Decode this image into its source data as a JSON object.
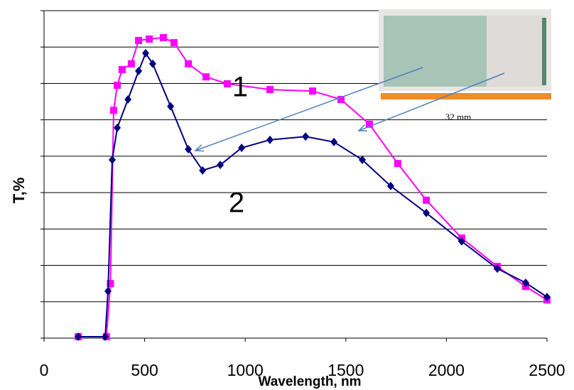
{
  "chart_data": {
    "type": "line",
    "xlabel": "Wavelength, nm",
    "ylabel": "T,%",
    "xlim": [
      0,
      2500
    ],
    "xticks": [
      0,
      500,
      1000,
      1500,
      2000,
      2500
    ],
    "ylim": [
      0,
      90
    ],
    "yticks": [
      0,
      10,
      20,
      30,
      40,
      50,
      60,
      70,
      80,
      90
    ],
    "grid": true,
    "series": [
      {
        "name": "1",
        "color": "#ff00ff",
        "marker": "square",
        "x": [
          170,
          310,
          330,
          346,
          364,
          388,
          434,
          470,
          523,
          593,
          646,
          717,
          805,
          911,
          1123,
          1335,
          1476,
          1617,
          1758,
          1900,
          2076,
          2253,
          2394,
          2500
        ],
        "values": [
          0.4,
          0.4,
          15,
          62.6,
          69.5,
          73.8,
          75.4,
          81.8,
          82.2,
          82.6,
          81.2,
          75.4,
          71.8,
          69.9,
          68.3,
          67.9,
          65.6,
          58.8,
          48,
          37.9,
          27.5,
          19.7,
          14.2,
          10.5
        ]
      },
      {
        "name": "2",
        "color": "#000080",
        "marker": "diamond",
        "x": [
          170,
          304,
          318,
          339,
          364,
          417,
          470,
          505,
          540,
          629,
          717,
          788,
          876,
          982,
          1123,
          1300,
          1441,
          1582,
          1723,
          1900,
          2076,
          2253,
          2394,
          2500
        ],
        "values": [
          0.4,
          0.4,
          12.9,
          49,
          57.8,
          65.6,
          73.4,
          78.3,
          75.4,
          63.7,
          51.9,
          46.1,
          47.6,
          52.3,
          54.5,
          55.4,
          53.9,
          49,
          41.8,
          34.4,
          26.6,
          19.1,
          15.2,
          11.3
        ]
      }
    ],
    "annotations": [
      "1",
      "2",
      "32 mm"
    ]
  }
}
